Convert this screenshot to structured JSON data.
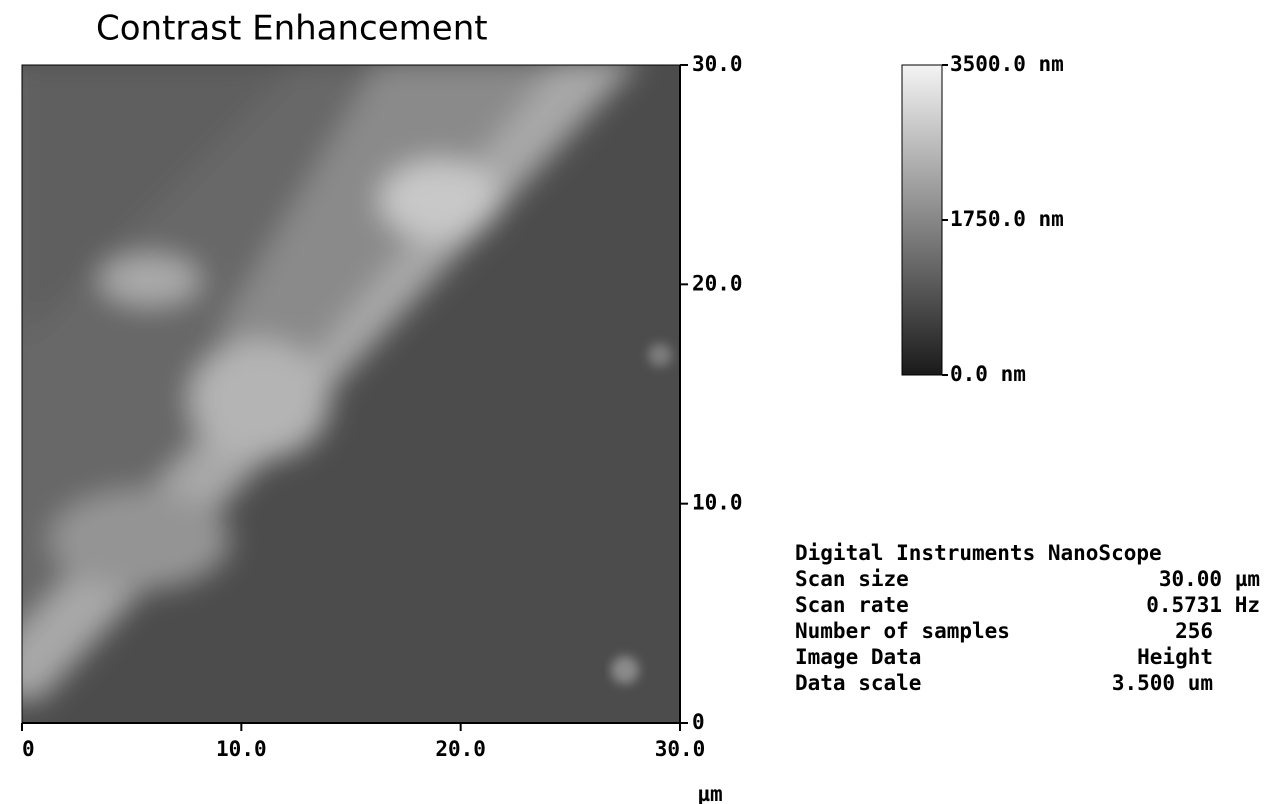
{
  "title": "Contrast Enhancement",
  "x_axis": {
    "ticks": [
      "0",
      "10.0",
      "20.0",
      "30.0"
    ],
    "unit": "µm"
  },
  "y_axis": {
    "ticks": [
      "0",
      "10.0",
      "20.0",
      "30.0"
    ]
  },
  "color_scale": {
    "labels": [
      "3500.0 nm",
      "1750.0 nm",
      "0.0 nm"
    ]
  },
  "info": {
    "header": "Digital Instruments NanoScope",
    "rows": [
      [
        "Scan size",
        "30.00 µm"
      ],
      [
        "Scan rate",
        "0.5731 Hz"
      ],
      [
        "Number of samples",
        "256"
      ],
      [
        "Image Data",
        "Height"
      ],
      [
        "Data scale",
        "3.500 um"
      ]
    ]
  }
}
